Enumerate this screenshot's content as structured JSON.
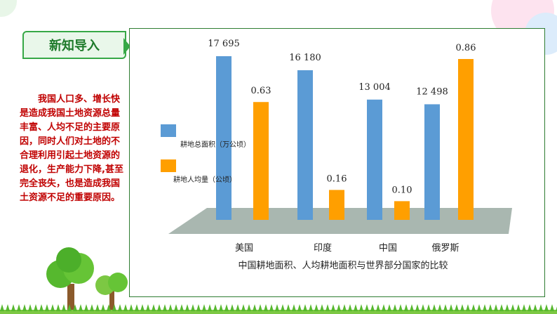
{
  "header": {
    "tag_label": "新知导入"
  },
  "intro_text": "我国人口多、增长快是造成我国土地资源总量丰富、人均不足的主要原因，同时人们对土地的不合理利用引起土地资源的退化，生产能力下降,甚至完全丧失，也是造成我国土资源不足的重要原因。",
  "colors": {
    "accent_green": "#36a846",
    "text_red": "#c00000",
    "series_area": "#5b9bd5",
    "series_per_capita": "#ff9f00",
    "floor": "#a9b7b0"
  },
  "icons": [
    "tree-icon",
    "grass-icon"
  ],
  "chart_data": {
    "type": "bar",
    "title": "中国耕地面积、人均耕地面积与世界部分国家的比较",
    "categories": [
      "美国",
      "印度",
      "中国",
      "俄罗斯"
    ],
    "series": [
      {
        "name": "耕地总面积（万公顷）",
        "values": [
          17695,
          16180,
          13004,
          12498
        ],
        "labels": [
          "17 695",
          "16 180",
          "13 004",
          "12 498"
        ],
        "color": "#5b9bd5"
      },
      {
        "name": "耕地人均量（公顷）",
        "values": [
          0.63,
          0.16,
          0.1,
          0.86
        ],
        "labels": [
          "0.63",
          "0.16",
          "0.10",
          "0.86"
        ],
        "color": "#ff9f00"
      }
    ],
    "legend_position": "left",
    "grid": false
  }
}
